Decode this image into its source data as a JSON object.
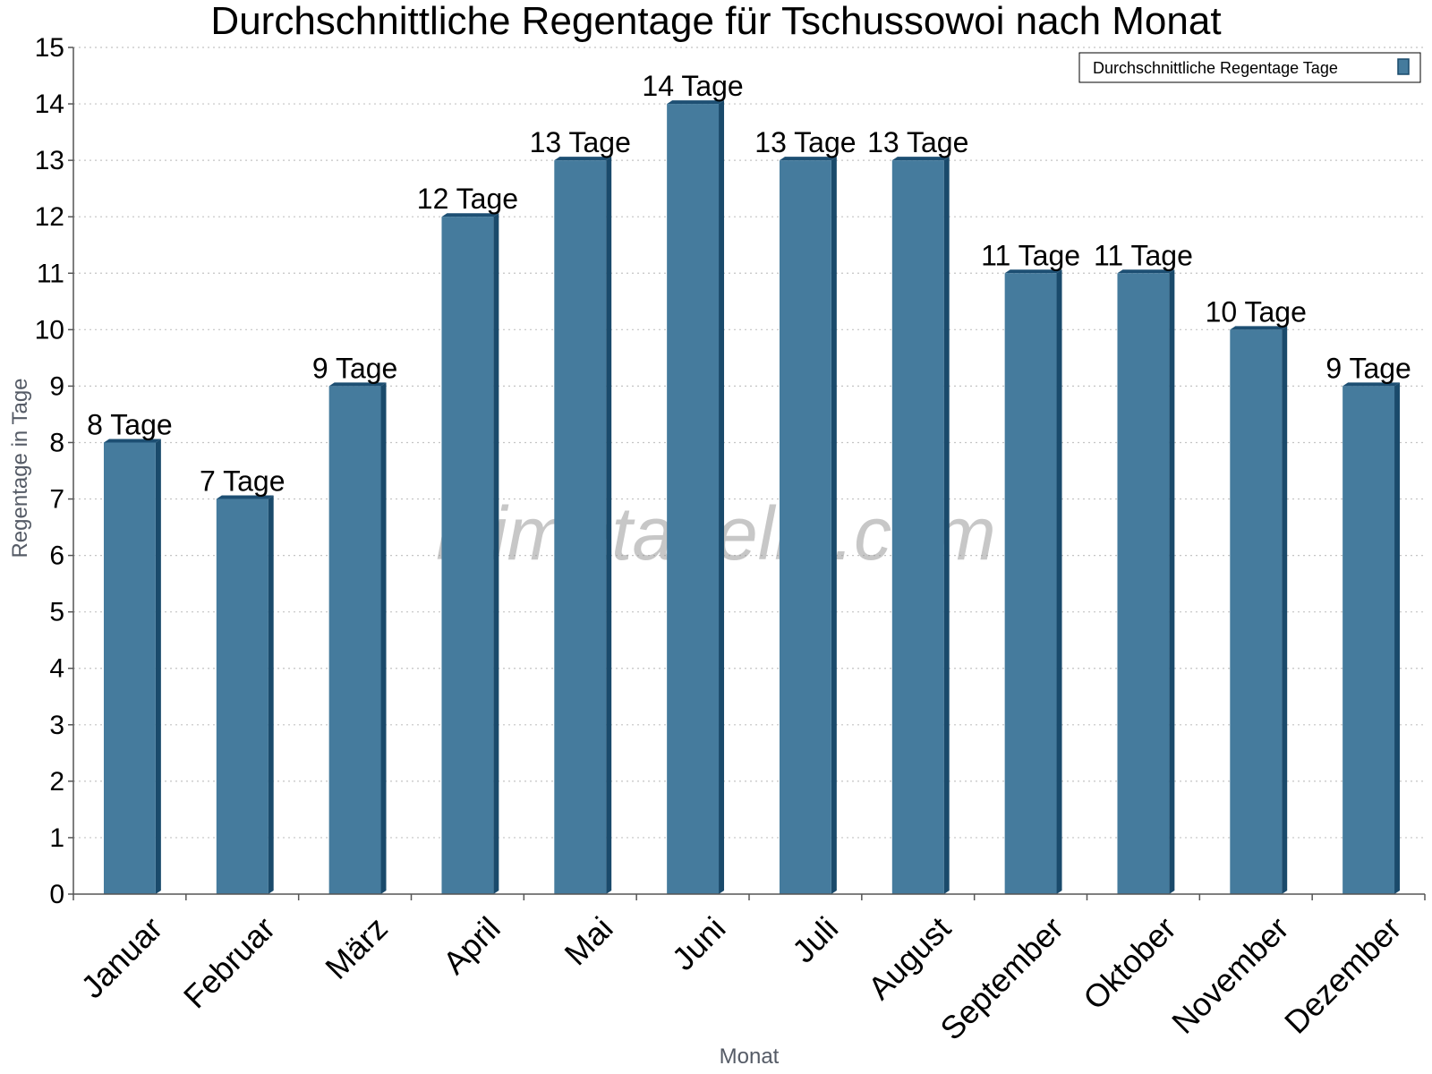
{
  "chart_data": {
    "type": "bar",
    "title": "Durchschnittliche Regentage für Tschussowoi nach Monat",
    "xlabel": "Monat",
    "ylabel": "Regentage in Tage",
    "categories": [
      "Januar",
      "Februar",
      "März",
      "April",
      "Mai",
      "Juni",
      "Juli",
      "August",
      "September",
      "Oktober",
      "November",
      "Dezember"
    ],
    "series": [
      {
        "name": "Durchschnittliche Regentage Tage",
        "values": [
          8,
          7,
          9,
          12,
          13,
          14,
          13,
          13,
          11,
          11,
          10,
          9
        ],
        "color": "#457b9d",
        "data_labels": [
          "8 Tage",
          "7 Tage",
          "9 Tage",
          "12 Tage",
          "13 Tage",
          "14 Tage",
          "13 Tage",
          "13 Tage",
          "11 Tage",
          "11 Tage",
          "10 Tage",
          "9 Tage"
        ]
      }
    ],
    "ylim": [
      0,
      15
    ],
    "yticks": [
      0,
      1,
      2,
      3,
      4,
      5,
      6,
      7,
      8,
      9,
      10,
      11,
      12,
      13,
      14,
      15
    ],
    "grid": true,
    "legend_position": "top-right",
    "watermark": "klimatabelle.com"
  }
}
